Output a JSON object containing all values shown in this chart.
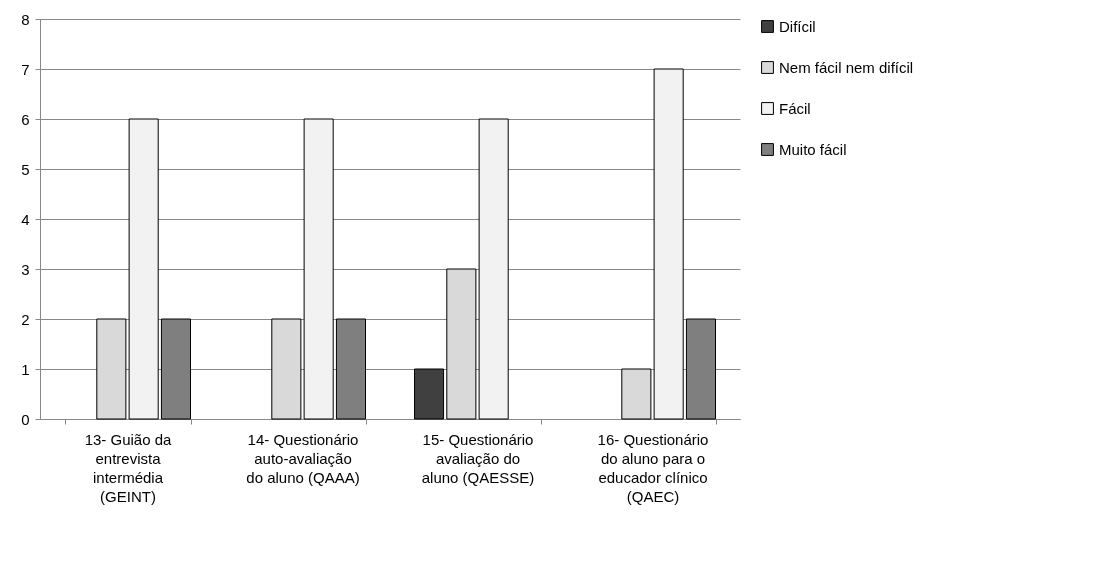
{
  "chart_data": {
    "type": "bar",
    "categories": [
      "13- Guião da entrevista intermédia (GEINT)",
      "14- Questionário auto-avaliação do aluno (QAAA)",
      "15- Questionário avaliação do aluno (QAESSE)",
      "16- Questionário do aluno para o educador clínico (QAEC)"
    ],
    "series": [
      {
        "name": "Difícil",
        "color": "#404040",
        "values": [
          0,
          0,
          1,
          0
        ]
      },
      {
        "name": "Nem fácil nem difícil",
        "color": "#d9d9d9",
        "values": [
          2,
          2,
          3,
          1
        ]
      },
      {
        "name": "Fácil",
        "color": "#f2f2f2",
        "values": [
          6,
          6,
          6,
          7
        ]
      },
      {
        "name": "Muito fácil",
        "color": "#7f7f7f",
        "values": [
          2,
          2,
          0,
          2
        ]
      }
    ],
    "ylim": [
      0,
      8
    ],
    "yticks": [
      0,
      1,
      2,
      3,
      4,
      5,
      6,
      7,
      8
    ],
    "grid": "y",
    "legend": "right"
  }
}
